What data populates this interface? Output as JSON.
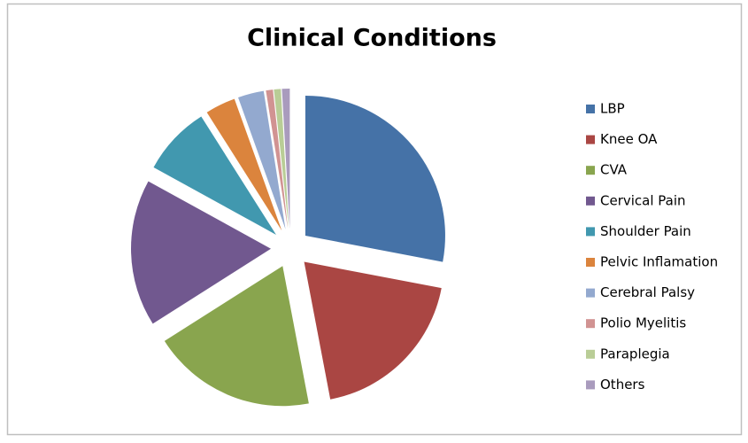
{
  "chart_data": {
    "type": "pie",
    "title": "Clinical Conditions",
    "categories": [
      "LBP",
      "Knee OA",
      "CVA",
      "Cervical Pain",
      "Shoulder Pain",
      "Pelvic Inflamation",
      "Cerebral Palsy",
      "Polio Myelitis",
      "Paraplegia",
      "Others"
    ],
    "values": [
      28,
      19,
      19,
      17,
      8,
      3.5,
      3,
      0.8,
      0.8,
      0.9
    ],
    "colors": [
      "#4572A7",
      "#AA4643",
      "#89A54E",
      "#71588F",
      "#4198AF",
      "#DB843D",
      "#93A9CF",
      "#D19392",
      "#B9CD96",
      "#A99BBD"
    ]
  }
}
